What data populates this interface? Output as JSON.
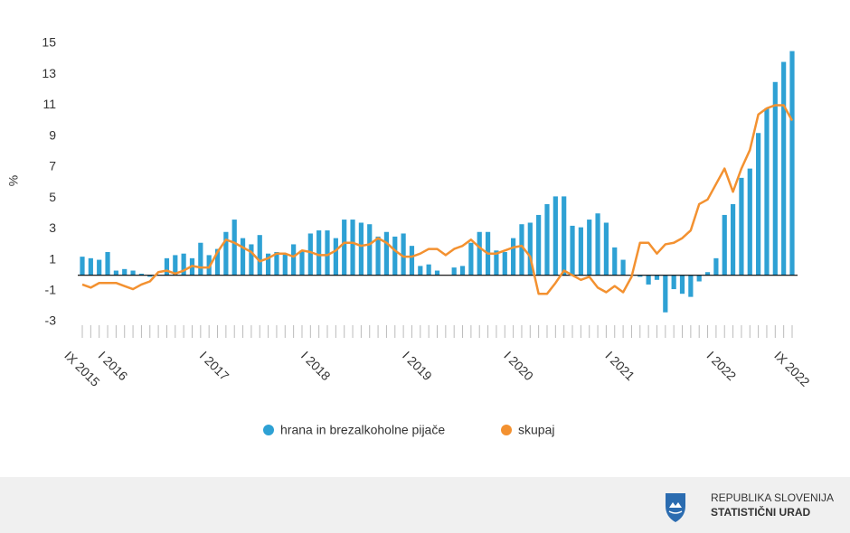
{
  "chart_data": {
    "type": "bar_line",
    "y_label": "%",
    "categories": [
      "IX 2015",
      null,
      null,
      null,
      "I 2016",
      null,
      null,
      null,
      null,
      null,
      null,
      null,
      null,
      null,
      null,
      null,
      "I 2017",
      null,
      null,
      null,
      null,
      null,
      null,
      null,
      null,
      null,
      null,
      null,
      "I 2018",
      null,
      null,
      null,
      null,
      null,
      null,
      null,
      null,
      null,
      null,
      null,
      "I 2019",
      null,
      null,
      null,
      null,
      null,
      null,
      null,
      null,
      null,
      null,
      null,
      "I 2020",
      null,
      null,
      null,
      null,
      null,
      null,
      null,
      null,
      null,
      null,
      null,
      "I 2021",
      null,
      null,
      null,
      null,
      null,
      null,
      null,
      null,
      null,
      null,
      null,
      "I 2022",
      null,
      null,
      null,
      null,
      null,
      null,
      null,
      "IX 2022"
    ],
    "series": [
      {
        "name": "hrana in brezalkoholne pijače",
        "kind": "bar",
        "color": "#2ea1d4",
        "values": [
          1.2,
          1.1,
          1.0,
          1.5,
          0.3,
          0.4,
          0.3,
          0.1,
          -0.1,
          0.0,
          1.1,
          1.3,
          1.4,
          1.1,
          2.1,
          1.3,
          1.7,
          2.8,
          3.6,
          2.4,
          2.0,
          2.6,
          1.4,
          1.5,
          1.4,
          2.0,
          1.6,
          2.7,
          2.9,
          2.9,
          2.4,
          3.6,
          3.6,
          3.4,
          3.3,
          2.5,
          2.8,
          2.5,
          2.7,
          1.9,
          0.6,
          0.7,
          0.3,
          0.0,
          0.5,
          0.6,
          2.1,
          2.8,
          2.8,
          1.6,
          1.5,
          2.4,
          3.3,
          3.4,
          3.9,
          4.6,
          5.1,
          5.1,
          3.2,
          3.1,
          3.6,
          4.0,
          3.4,
          1.8,
          1.0,
          0.0,
          -0.1,
          -0.6,
          -0.3,
          -2.4,
          -0.9,
          -1.2,
          -1.4,
          -0.4,
          0.2,
          1.1,
          3.9,
          4.6,
          6.3,
          6.9,
          9.2,
          10.8,
          12.5,
          13.8,
          14.5
        ]
      },
      {
        "name": "skupaj",
        "kind": "line",
        "color": "#f39130",
        "values": [
          -0.6,
          -0.8,
          -0.5,
          -0.5,
          -0.5,
          -0.7,
          -0.9,
          -0.6,
          -0.4,
          0.2,
          0.3,
          0.1,
          0.3,
          0.6,
          0.5,
          0.5,
          1.5,
          2.3,
          2.1,
          1.8,
          1.5,
          0.9,
          1.1,
          1.4,
          1.4,
          1.2,
          1.6,
          1.5,
          1.3,
          1.3,
          1.6,
          2.1,
          2.1,
          1.9,
          2.0,
          2.4,
          2.1,
          1.6,
          1.2,
          1.2,
          1.4,
          1.7,
          1.7,
          1.3,
          1.7,
          1.9,
          2.3,
          1.8,
          1.4,
          1.4,
          1.6,
          1.8,
          1.9,
          1.2,
          -1.2,
          -1.2,
          -0.5,
          0.3,
          0.0,
          -0.3,
          -0.1,
          -0.8,
          -1.1,
          -0.7,
          -1.1,
          -0.1,
          2.1,
          2.1,
          1.4,
          2.0,
          2.1,
          2.4,
          2.9,
          4.6,
          4.9,
          5.9,
          6.9,
          5.4,
          6.9,
          8.1,
          10.4,
          10.8,
          11.0,
          11.0,
          10.0
        ]
      }
    ],
    "ylim": [
      -3,
      15
    ],
    "yticks": [
      -3,
      -1,
      1,
      3,
      5,
      7,
      9,
      11,
      13,
      15
    ],
    "grid": false,
    "legend": "bottom"
  },
  "footer": {
    "line1": "REPUBLIKA SLOVENIJA",
    "line2": "STATISTIČNI URAD"
  }
}
